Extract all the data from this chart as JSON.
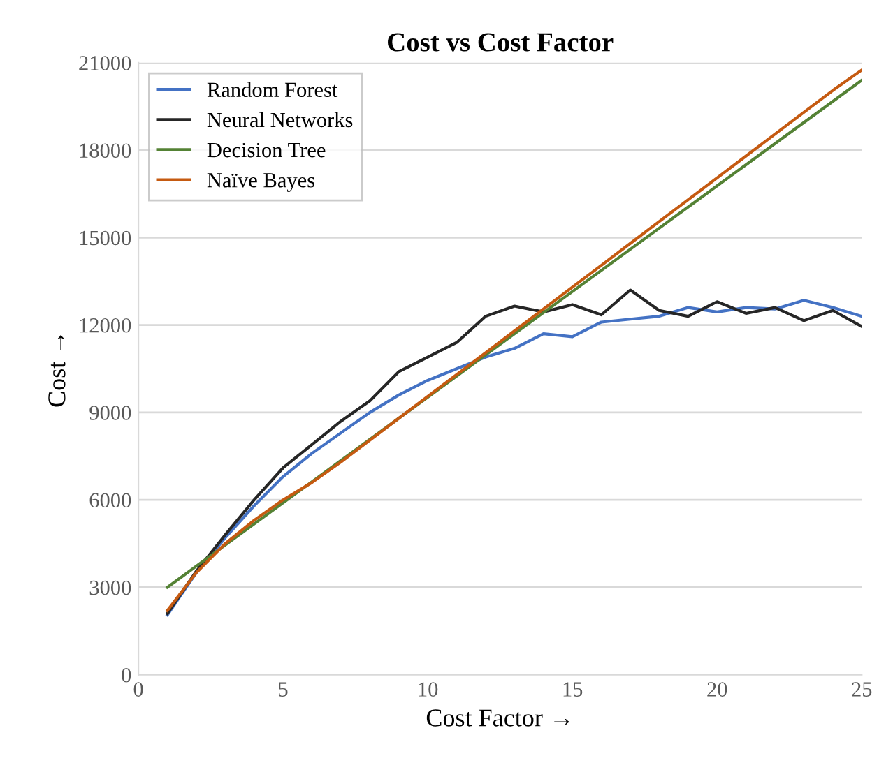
{
  "chart_data": {
    "type": "line",
    "title": "Cost vs Cost Factor",
    "xlabel": "Cost Factor →",
    "ylabel": "Cost →",
    "x": [
      1,
      2,
      3,
      4,
      5,
      6,
      7,
      8,
      9,
      10,
      11,
      12,
      13,
      14,
      15,
      16,
      17,
      18,
      19,
      20,
      21,
      22,
      23,
      24,
      25
    ],
    "series": [
      {
        "name": "Random Forest",
        "color": "#4472c4",
        "values": [
          2050,
          3500,
          4700,
          5800,
          6800,
          7600,
          8300,
          9000,
          9600,
          10100,
          10500,
          10900,
          11200,
          11700,
          11600,
          12100,
          12200,
          12300,
          12600,
          12450,
          12600,
          12550,
          12850,
          12600,
          12300
        ]
      },
      {
        "name": "Neural Networks",
        "color": "#262626",
        "values": [
          2100,
          3550,
          4800,
          6000,
          7100,
          7900,
          8700,
          9400,
          10400,
          10900,
          11400,
          12300,
          12650,
          12450,
          12700,
          12350,
          13200,
          12500,
          12300,
          12800,
          12400,
          12600,
          12150,
          12500,
          11950
        ]
      },
      {
        "name": "Decision Tree",
        "color": "#548235",
        "values": [
          3000,
          3725,
          4450,
          5175,
          5900,
          6625,
          7350,
          8075,
          8800,
          9525,
          10250,
          10975,
          11700,
          12425,
          13150,
          13875,
          14600,
          15325,
          16050,
          16775,
          17500,
          18225,
          18950,
          19675,
          20400
        ]
      },
      {
        "name": "Naïve Bayes",
        "color": "#c55a11",
        "values": [
          2200,
          3500,
          4500,
          5300,
          6000,
          6600,
          7300,
          8050,
          8800,
          9550,
          10300,
          11050,
          11800,
          12550,
          13300,
          14050,
          14800,
          15550,
          16300,
          17050,
          17800,
          18550,
          19300,
          20050,
          20750
        ]
      }
    ],
    "xlim": [
      0,
      25
    ],
    "xticks": [
      0,
      5,
      10,
      15,
      20,
      25
    ],
    "ylim": [
      0,
      21000
    ],
    "yticks": [
      0,
      3000,
      6000,
      9000,
      12000,
      15000,
      18000,
      21000
    ],
    "grid": "y",
    "legend": "top left",
    "marker": "none",
    "line_style": "solid"
  }
}
